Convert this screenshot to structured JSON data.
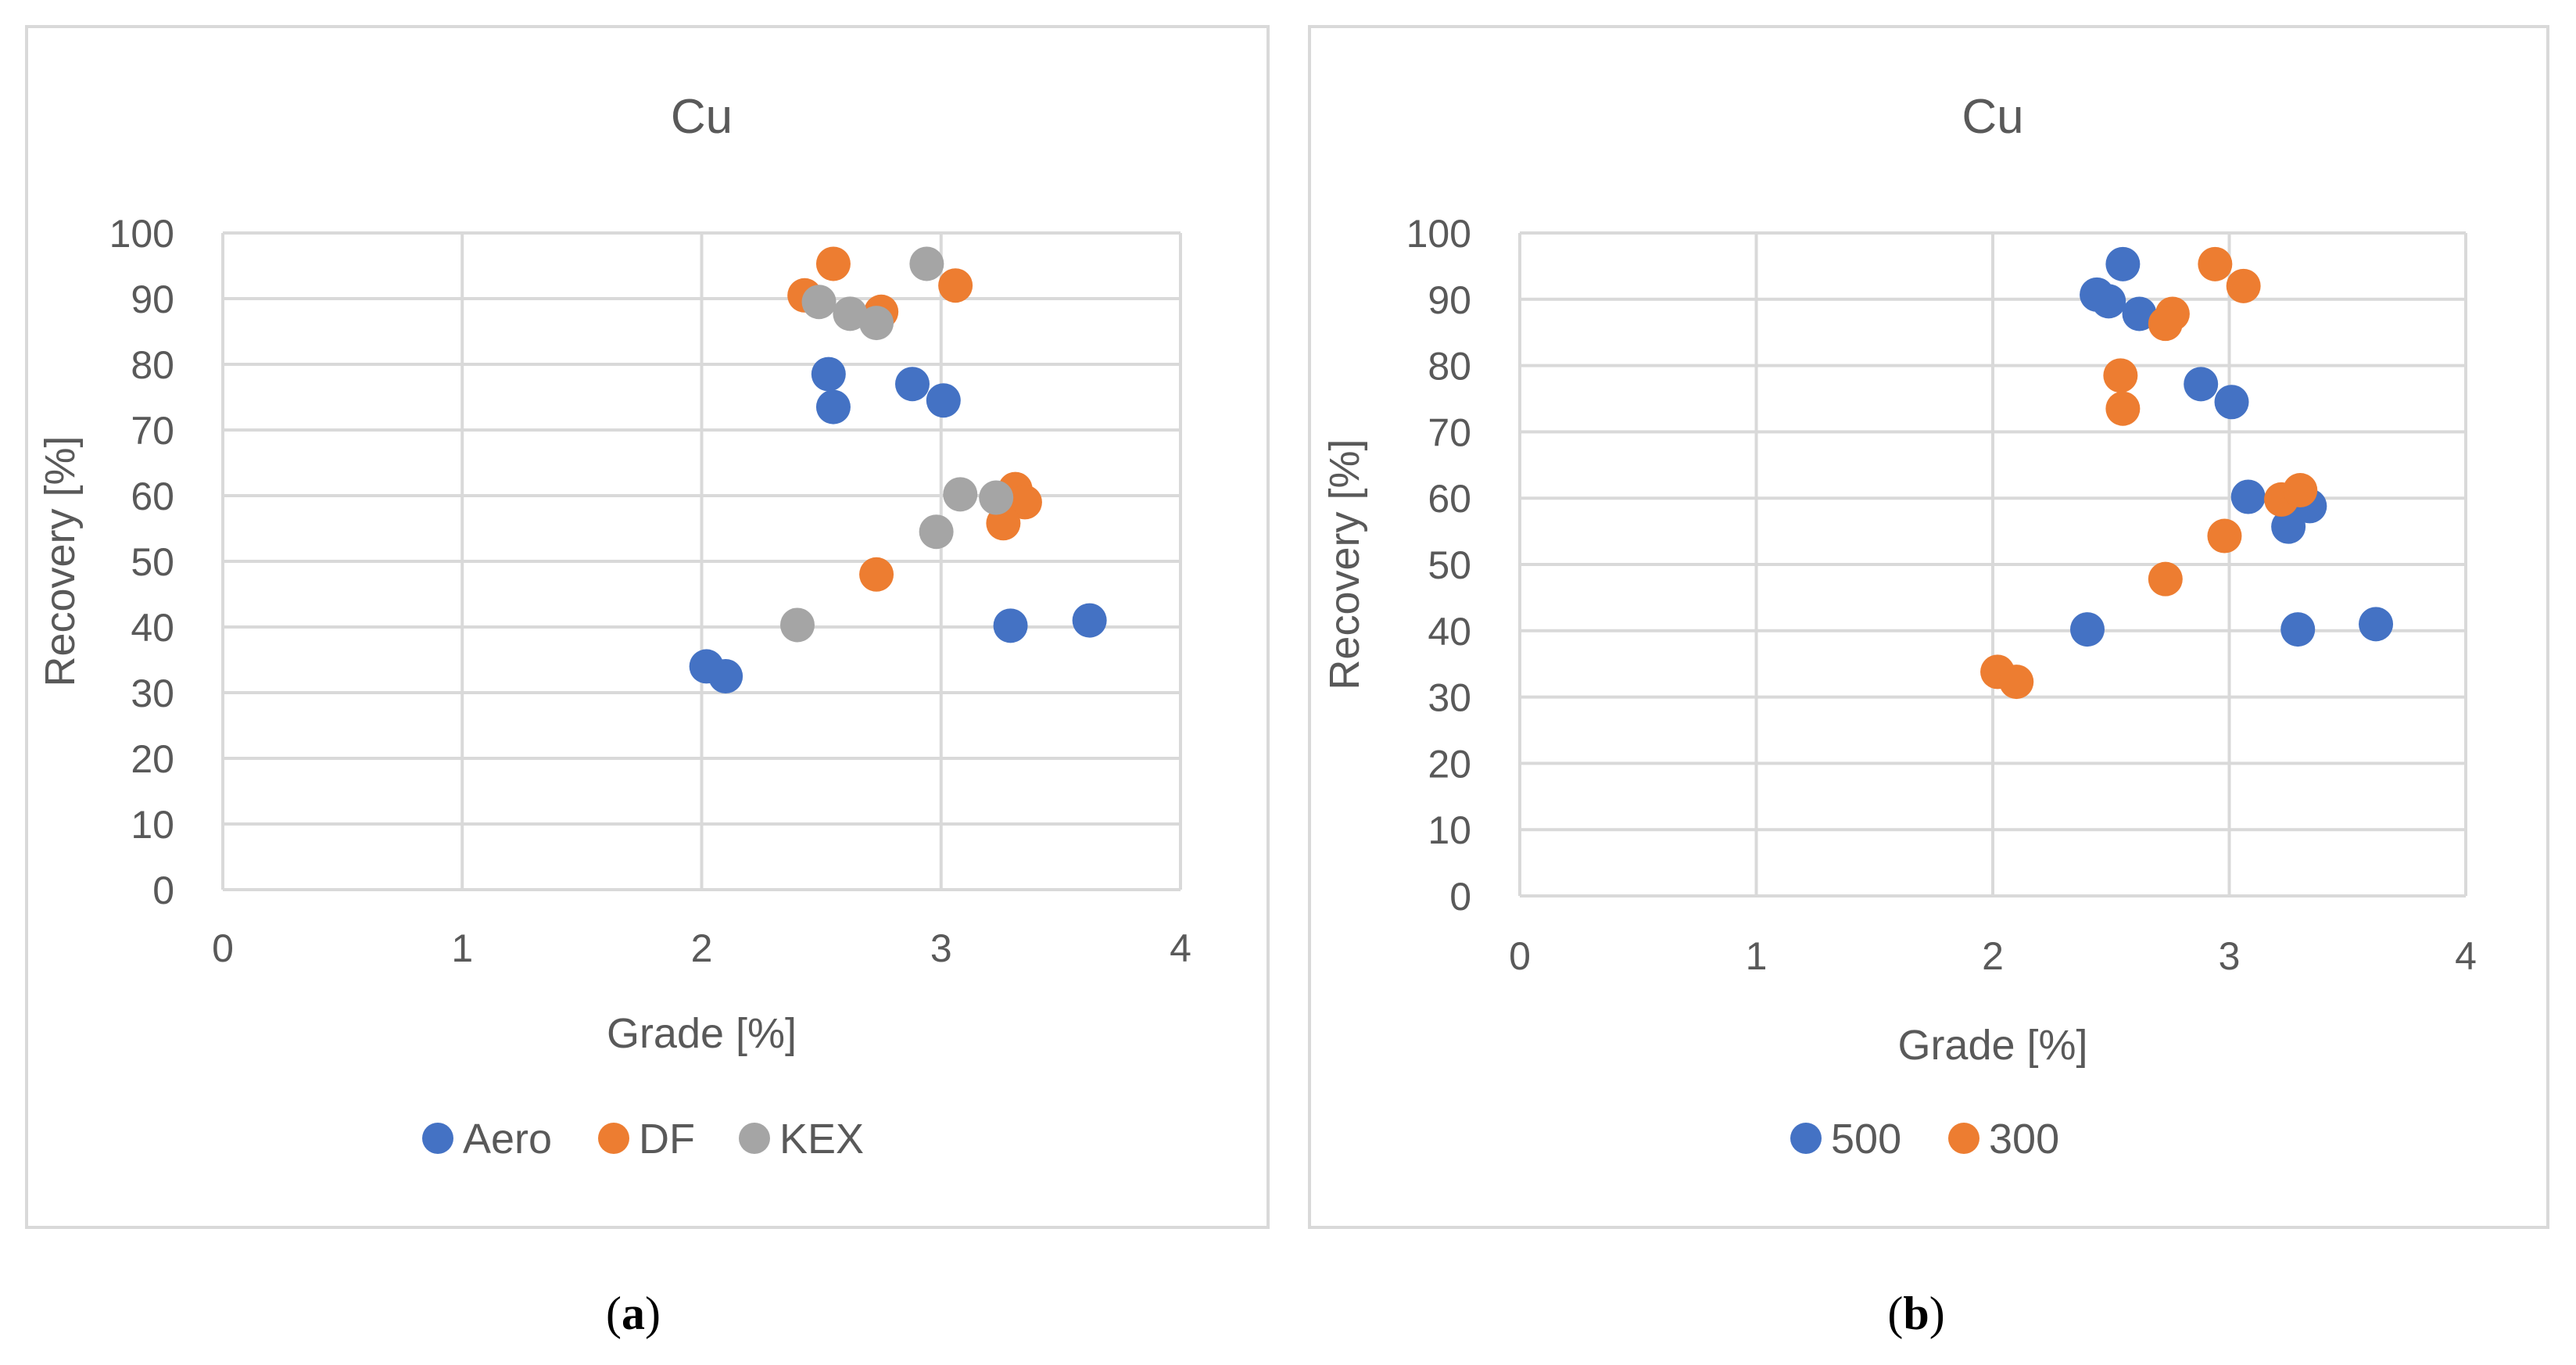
{
  "chart_data": [
    {
      "type": "scatter",
      "panel_label": "a",
      "title": "Cu",
      "xlabel": "Grade [%]",
      "ylabel": "Recovery [%]",
      "xlim": [
        0,
        4
      ],
      "ylim": [
        0,
        100
      ],
      "xticks": [
        0,
        1,
        2,
        3,
        4
      ],
      "yticks": [
        0,
        10,
        20,
        30,
        40,
        50,
        60,
        70,
        80,
        90,
        100
      ],
      "grid": true,
      "legend_position": "bottom",
      "series": [
        {
          "name": "Aero",
          "color": "#4472c4",
          "points": [
            [
              2.02,
              34
            ],
            [
              2.1,
              32.5
            ],
            [
              2.53,
              78.5
            ],
            [
              2.55,
              73.5
            ],
            [
              2.88,
              77
            ],
            [
              3.01,
              74.5
            ],
            [
              3.29,
              40.2
            ],
            [
              3.62,
              41
            ]
          ]
        },
        {
          "name": "DF",
          "color": "#ed7d31",
          "points": [
            [
              2.43,
              90.5
            ],
            [
              2.55,
              95.3
            ],
            [
              2.75,
              88
            ],
            [
              3.06,
              92
            ],
            [
              3.31,
              61
            ],
            [
              3.35,
              59
            ],
            [
              3.26,
              55.8
            ],
            [
              2.73,
              48
            ]
          ]
        },
        {
          "name": "KEX",
          "color": "#a5a5a5",
          "points": [
            [
              2.49,
              89.5
            ],
            [
              2.62,
              87.7
            ],
            [
              2.73,
              86.3
            ],
            [
              2.94,
              95.3
            ],
            [
              3.08,
              60.2
            ],
            [
              3.23,
              59.7
            ],
            [
              2.98,
              54.5
            ],
            [
              2.4,
              40.3
            ]
          ]
        }
      ]
    },
    {
      "type": "scatter",
      "panel_label": "b",
      "title": "Cu",
      "xlabel": "Grade [%]",
      "ylabel": "Recovery [%]",
      "xlim": [
        0,
        4
      ],
      "ylim": [
        0,
        100
      ],
      "xticks": [
        0,
        1,
        2,
        3,
        4
      ],
      "yticks": [
        0,
        10,
        20,
        30,
        40,
        50,
        60,
        70,
        80,
        90,
        100
      ],
      "grid": true,
      "legend_position": "bottom",
      "series": [
        {
          "name": "500",
          "color": "#4472c4",
          "points": [
            [
              2.44,
              90.7
            ],
            [
              2.49,
              89.7
            ],
            [
              2.55,
              95.3
            ],
            [
              2.62,
              87.8
            ],
            [
              2.88,
              77.2
            ],
            [
              3.01,
              74.5
            ],
            [
              3.08,
              60.2
            ],
            [
              3.25,
              55.7
            ],
            [
              3.34,
              58.8
            ],
            [
              2.4,
              40.2
            ],
            [
              3.29,
              40.2
            ],
            [
              3.62,
              41
            ]
          ]
        },
        {
          "name": "300",
          "color": "#ed7d31",
          "points": [
            [
              2.94,
              95.3
            ],
            [
              3.06,
              92
            ],
            [
              2.76,
              87.8
            ],
            [
              2.73,
              86.3
            ],
            [
              2.54,
              78.5
            ],
            [
              2.55,
              73.5
            ],
            [
              3.22,
              59.8
            ],
            [
              3.3,
              61.2
            ],
            [
              2.98,
              54.3
            ],
            [
              2.73,
              47.8
            ],
            [
              2.02,
              33.8
            ],
            [
              2.1,
              32.3
            ]
          ]
        }
      ]
    }
  ]
}
